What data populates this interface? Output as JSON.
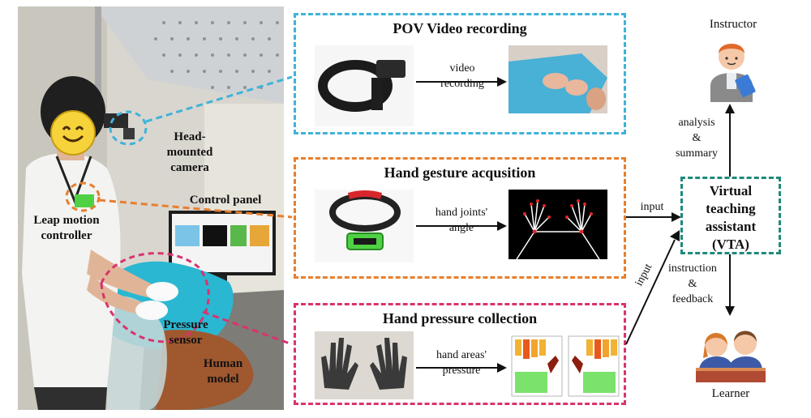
{
  "photo": {
    "label_camera": "Head-mounted\ncamera",
    "label_control": "Control panel",
    "label_leap": "Leap motion\ncontroller",
    "label_pressure": "Pressure\nsensor",
    "label_human": "Human\nmodel"
  },
  "panels": {
    "pov": {
      "title": "POV Video recording",
      "arrow_label": "video\nrecording",
      "color": "#3fb3d9"
    },
    "gesture": {
      "title": "Hand gesture acqusition",
      "arrow_label": "hand joints'\nangle",
      "color": "#e87f2e"
    },
    "pressure": {
      "title": "Hand pressure collection",
      "arrow_label": "hand areas'\npressure",
      "color": "#d9336e"
    }
  },
  "vta": {
    "label": "Virtual\nteaching\nassistant\n(VTA)",
    "color": "#1f8a7a"
  },
  "flow": {
    "input_gesture": "input",
    "input_pressure": "input",
    "analysis": "analysis\n&\nsummary",
    "instruction": "instruction\n&\nfeedback"
  },
  "roles": {
    "instructor": "Instructor",
    "learner": "Learner"
  }
}
